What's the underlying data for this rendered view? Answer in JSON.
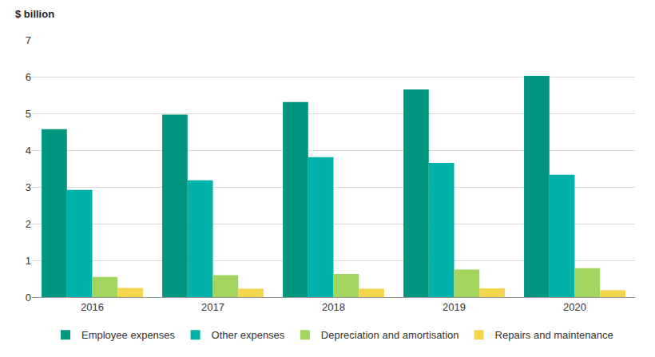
{
  "chart_data": {
    "type": "bar",
    "ylabel": "$ billion",
    "categories": [
      "2016",
      "2017",
      "2018",
      "2019",
      "2020"
    ],
    "series": [
      {
        "name": "Employee expenses",
        "color": "#00967f",
        "values": [
          4.57,
          4.97,
          5.31,
          5.65,
          6.02
        ]
      },
      {
        "name": "Other expenses",
        "color": "#00b2a9",
        "values": [
          2.92,
          3.18,
          3.81,
          3.65,
          3.33
        ]
      },
      {
        "name": "Depreciation and amortisation",
        "color": "#a2d45e",
        "values": [
          0.55,
          0.6,
          0.63,
          0.75,
          0.79
        ]
      },
      {
        "name": "Repairs and maintenance",
        "color": "#f3d54e",
        "values": [
          0.25,
          0.23,
          0.23,
          0.24,
          0.19
        ]
      }
    ],
    "ylim": [
      0,
      7
    ],
    "yticks": [
      0,
      1,
      2,
      3,
      4,
      5,
      6,
      7
    ],
    "grid": true,
    "legend": "bottom"
  }
}
